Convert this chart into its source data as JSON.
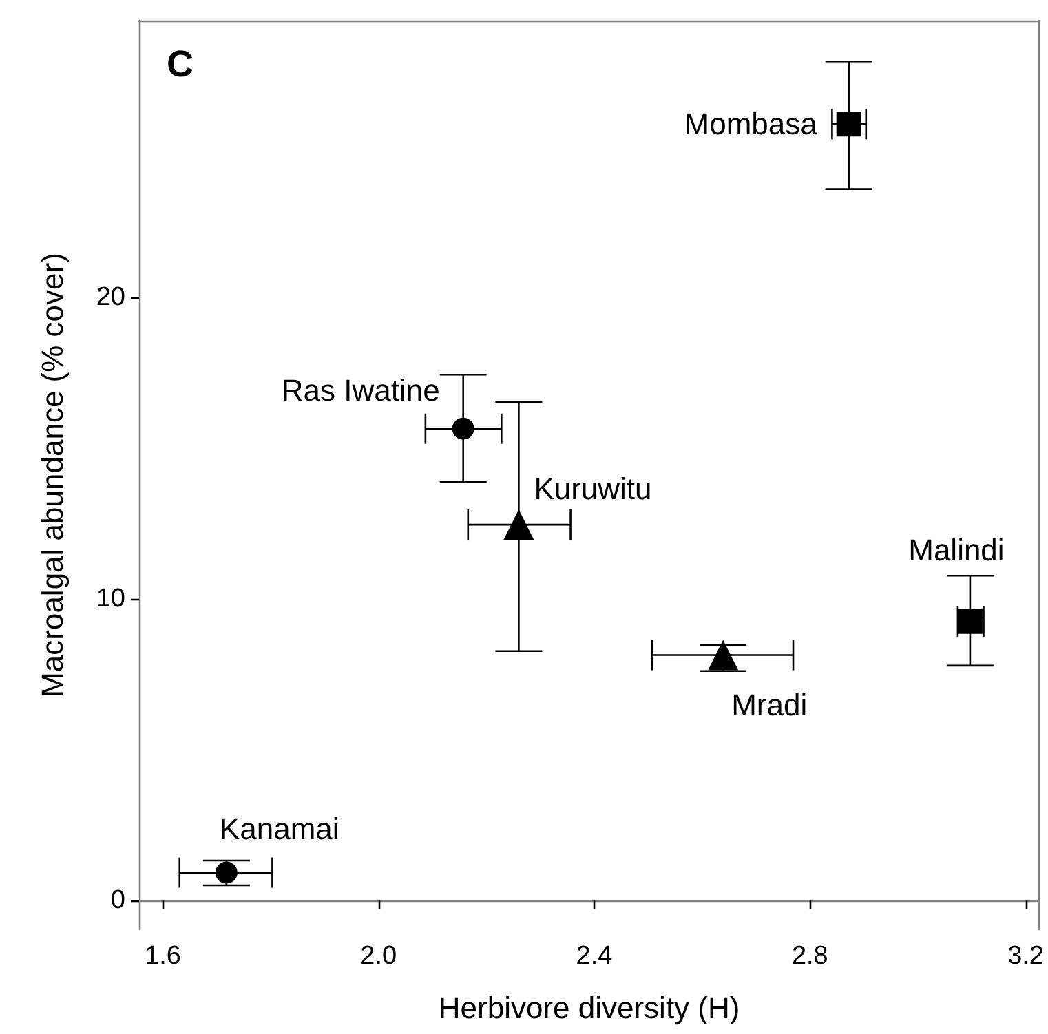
{
  "chart_data": {
    "type": "scatter",
    "title": "C",
    "xlabel": "Herbivore diversity (H)",
    "ylabel": "Macroalgal abundance (% cover)",
    "xlim": [
      1.556,
      3.225
    ],
    "ylim": [
      -0.95,
      29.16
    ],
    "xticks": [
      1.6,
      {
        "value": 2,
        "label": "2.0"
      },
      2.4,
      2.8,
      {
        "value": 3.2,
        "label": "3.2"
      }
    ],
    "yticks": [
      0,
      10,
      20
    ],
    "grid": false,
    "series": [
      {
        "color": "#000000",
        "marker": "circle",
        "x": [
          2.157,
          1.718
        ],
        "values": [
          15.64,
          0.93
        ],
        "errors": [
          [
            13.87,
            17.43
          ],
          [
            0.51,
            1.33
          ]
        ],
        "xerrors": [
          [
            2.087,
            2.228
          ],
          [
            1.631,
            1.803
          ]
        ]
      },
      {
        "color": "#000000",
        "marker": "triangle",
        "x": [
          2.26,
          2.639
        ],
        "values": [
          12.46,
          8.14
        ],
        "errors": [
          [
            8.27,
            16.53
          ],
          [
            7.61,
            8.47
          ]
        ],
        "xerrors": [
          [
            2.166,
            2.356
          ],
          [
            2.507,
            2.769
          ]
        ]
      },
      {
        "color": "#000000",
        "marker": "square",
        "x": [
          2.872,
          3.097
        ],
        "values": [
          25.73,
          9.25
        ],
        "errors": [
          [
            23.58,
            27.81
          ],
          [
            7.79,
            10.77
          ]
        ],
        "xerrors": [
          [
            2.841,
            2.904
          ],
          [
            3.074,
            3.122
          ]
        ]
      }
    ],
    "annotations": [
      {
        "text": "Mombasa",
        "x": 2.872,
        "y": 25.73
      },
      {
        "text": "Ras Iwatine",
        "x": 2.157,
        "y": 15.64
      },
      {
        "text": "Kuruwitu",
        "x": 2.26,
        "y": 12.46
      },
      {
        "text": "Mradi",
        "x": 2.639,
        "y": 8.14
      },
      {
        "text": "Malindi",
        "x": 3.097,
        "y": 9.25
      },
      {
        "text": "Kanamai",
        "x": 1.718,
        "y": 0.93
      }
    ]
  }
}
